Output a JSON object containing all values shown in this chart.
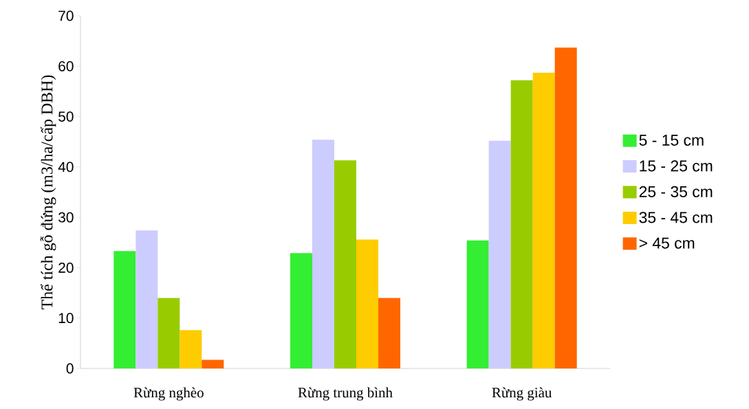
{
  "chart_data": {
    "type": "bar",
    "ylabel": "Thể tích gỗ đứng (m3/ha/cấp DBH)",
    "categories": [
      "Rừng nghèo",
      "Rừng trung bình",
      "Rừng giàu"
    ],
    "series": [
      {
        "name": "5 - 15 cm",
        "color": "#33ee33",
        "values": [
          23.3,
          22.9,
          25.4
        ]
      },
      {
        "name": "15 - 25 cm",
        "color": "#ccccff",
        "values": [
          27.4,
          45.4,
          45.2
        ]
      },
      {
        "name": "25 - 35 cm",
        "color": "#99cc00",
        "values": [
          14.0,
          41.3,
          57.2
        ]
      },
      {
        "name": "35 - 45 cm",
        "color": "#ffcc00",
        "values": [
          7.6,
          25.6,
          58.7
        ]
      },
      {
        "name": "> 45 cm",
        "color": "#ff6600",
        "values": [
          1.7,
          14.0,
          63.7
        ]
      }
    ],
    "ylim": [
      0,
      70
    ],
    "yticks": [
      0,
      10,
      20,
      30,
      40,
      50,
      60,
      70
    ],
    "grid": false,
    "legend": "right"
  }
}
